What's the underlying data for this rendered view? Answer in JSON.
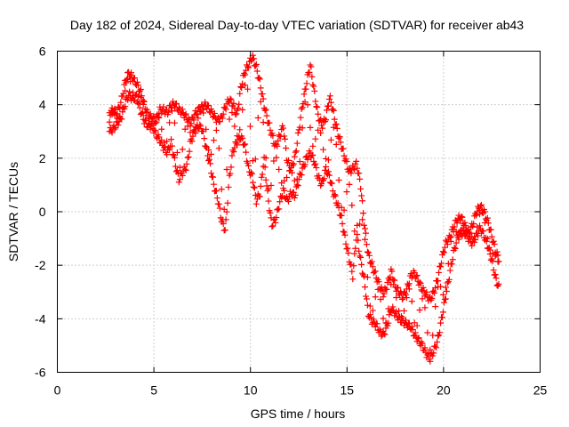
{
  "chart_data": {
    "type": "scatter",
    "title": "Day 182 of 2024, Sidereal Day-to-day VTEC variation (SDTVAR) for receiver ab43",
    "xlabel": "GPS time / hours",
    "ylabel": "SDTVAR / TECUs",
    "xlim": [
      0,
      25
    ],
    "ylim": [
      -6,
      6
    ],
    "xticks": [
      0,
      5,
      10,
      15,
      20,
      25
    ],
    "yticks": [
      -6,
      -4,
      -2,
      0,
      2,
      4,
      6
    ],
    "grid": true,
    "marker": "plus",
    "color": "#ff0000",
    "series": [
      {
        "name": "SDTVAR",
        "x": [
          2.7,
          2.9,
          3.1,
          3.3,
          3.5,
          3.7,
          3.9,
          4.1,
          4.3,
          4.5,
          4.7,
          4.9,
          5.1,
          5.3,
          5.5,
          5.7,
          5.9,
          6.1,
          6.3,
          6.5,
          6.7,
          6.9,
          7.1,
          7.3,
          7.5,
          7.7,
          7.9,
          8.1,
          8.3,
          8.5,
          8.7,
          8.9,
          9.1,
          9.3,
          9.5,
          9.7,
          9.9,
          10.1,
          10.3,
          10.5,
          10.7,
          10.9,
          11.1,
          11.3,
          11.5,
          11.7,
          11.9,
          12.1,
          12.3,
          12.5,
          12.7,
          12.9,
          13.1,
          13.3,
          13.5,
          13.7,
          13.9,
          14.1,
          14.3,
          14.5,
          14.7,
          14.9,
          15.1,
          15.3,
          15.5,
          15.7,
          15.9,
          16.1,
          16.3,
          16.5,
          16.7,
          16.9,
          17.1,
          17.3,
          17.5,
          17.7,
          17.9,
          18.1,
          18.3,
          18.5,
          18.7,
          18.9,
          19.1,
          19.3,
          19.5,
          19.7,
          19.9,
          20.1,
          20.3,
          20.5,
          20.7,
          20.9,
          21.1,
          21.3,
          21.5,
          21.7,
          21.9,
          22.1,
          22.3,
          22.5,
          22.7,
          22.9
        ],
        "y_lower": [
          3.0,
          3.1,
          3.3,
          3.5,
          4.0,
          4.4,
          4.2,
          4.3,
          3.8,
          3.4,
          3.2,
          3.2,
          2.9,
          2.7,
          2.4,
          2.2,
          2.6,
          1.8,
          1.2,
          1.5,
          1.7,
          2.6,
          3.0,
          3.2,
          3.1,
          2.4,
          1.8,
          1.0,
          0.5,
          -0.3,
          -0.7,
          1.2,
          2.3,
          2.6,
          2.8,
          2.5,
          1.6,
          1.3,
          0.4,
          0.7,
          2.0,
          0.6,
          -0.5,
          -0.3,
          0.3,
          0.8,
          0.4,
          0.7,
          0.6,
          1.2,
          1.6,
          2.0,
          2.2,
          1.9,
          1.3,
          1.0,
          1.6,
          1.3,
          0.7,
          0.3,
          -0.2,
          -1.0,
          -1.7,
          -2.4,
          -0.8,
          -1.8,
          -2.6,
          -3.8,
          -4.1,
          -4.2,
          -4.5,
          -4.6,
          -4.2,
          -3.6,
          -3.8,
          -4.0,
          -4.1,
          -4.2,
          -4.3,
          -4.6,
          -4.8,
          -5.0,
          -5.3,
          -5.5,
          -5.2,
          -4.8,
          -4.0,
          -3.2,
          -2.4,
          -1.6,
          -1.0,
          -0.8,
          -0.8,
          -1.0,
          -1.2,
          -0.9,
          -0.6,
          -0.9,
          -1.3,
          -1.8,
          -2.5,
          -2.9
        ],
        "y_upper": [
          3.7,
          3.8,
          3.7,
          4.1,
          4.8,
          5.2,
          5.0,
          4.8,
          4.5,
          4.0,
          3.6,
          3.5,
          3.4,
          3.8,
          3.8,
          3.7,
          4.0,
          4.0,
          3.8,
          3.7,
          3.5,
          3.3,
          3.6,
          3.8,
          3.9,
          4.0,
          3.8,
          3.6,
          3.4,
          3.5,
          3.9,
          4.2,
          4.0,
          3.6,
          4.6,
          5.2,
          5.5,
          5.8,
          5.4,
          4.8,
          4.0,
          3.4,
          2.9,
          2.4,
          2.8,
          3.2,
          1.9,
          1.6,
          2.0,
          3.0,
          4.0,
          4.8,
          5.5,
          4.5,
          3.6,
          3.2,
          3.5,
          4.3,
          3.7,
          3.0,
          2.5,
          2.0,
          1.5,
          1.6,
          1.8,
          1.0,
          -0.5,
          -1.6,
          -2.0,
          -2.4,
          -2.8,
          -3.1,
          -2.7,
          -2.2,
          -2.8,
          -3.0,
          -3.2,
          -2.9,
          -2.4,
          -2.3,
          -2.6,
          -2.9,
          -3.1,
          -3.3,
          -3.0,
          -2.5,
          -1.8,
          -1.2,
          -1.0,
          -0.6,
          -0.3,
          -0.2,
          -0.5,
          -0.8,
          -0.5,
          0.0,
          0.2,
          0.0,
          -0.4,
          -0.9,
          -1.5,
          -1.8
        ]
      }
    ]
  }
}
